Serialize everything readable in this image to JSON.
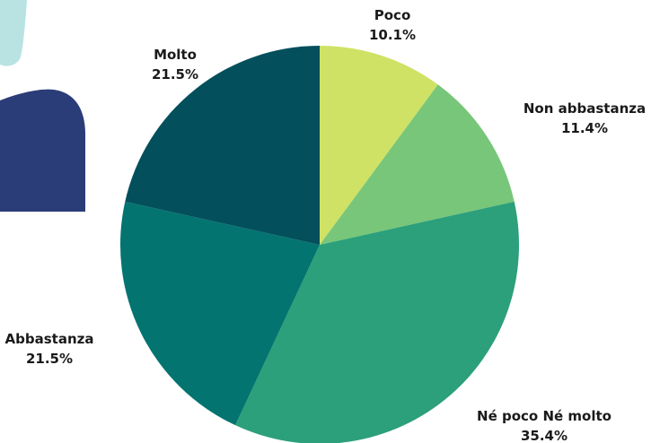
{
  "chart_data": {
    "type": "pie",
    "title": "",
    "slices": [
      {
        "label": "Poco",
        "value": 10.1,
        "value_label": "10.1%",
        "color": "#cfe265"
      },
      {
        "label": "Non abbastanza",
        "value": 11.4,
        "value_label": "11.4%",
        "color": "#78c679"
      },
      {
        "label": "Né poco Né molto",
        "value": 35.4,
        "value_label": "35.4%",
        "color": "#2c9f7b"
      },
      {
        "label": "Abbastanza",
        "value": 21.5,
        "value_label": "21.5%",
        "color": "#03746f"
      },
      {
        "label": "Molto",
        "value": 21.5,
        "value_label": "21.5%",
        "color": "#034f5c"
      }
    ],
    "start_angle": "top",
    "direction": "clockwise"
  },
  "decor": {
    "shape_colors": [
      "#b9e3e3",
      "#2b3d78"
    ]
  }
}
